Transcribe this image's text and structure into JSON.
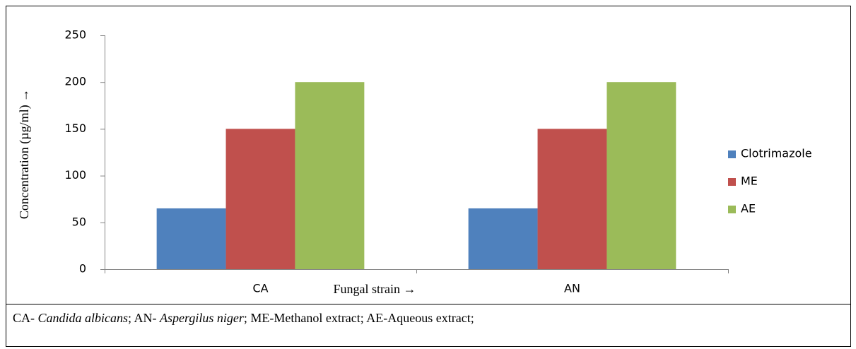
{
  "chart_data": {
    "type": "bar",
    "categories": [
      "CA",
      "AN"
    ],
    "series": [
      {
        "name": "Clotrimazole",
        "color": "#4f81bd",
        "values": [
          65,
          65
        ]
      },
      {
        "name": "ME",
        "color": "#c0504d",
        "values": [
          150,
          150
        ]
      },
      {
        "name": "AE",
        "color": "#9bbb59",
        "values": [
          200,
          200
        ]
      }
    ],
    "ylim": [
      0,
      250
    ],
    "yticks": [
      0,
      50,
      100,
      150,
      200,
      250
    ],
    "ylabel": "Concentration (µg/ml) →",
    "xlabel": "Fungal strain →",
    "legend": "right",
    "grid": false
  },
  "caption": [
    {
      "text": "CA- ",
      "style": "normal"
    },
    {
      "text": "Candida albicans",
      "style": "italic"
    },
    {
      "text": "; AN- ",
      "style": "normal"
    },
    {
      "text": "Aspergilus niger",
      "style": "italic"
    },
    {
      "text": ";  ME-Methanol extract; AE-Aqueous extract;",
      "style": "normal"
    }
  ]
}
